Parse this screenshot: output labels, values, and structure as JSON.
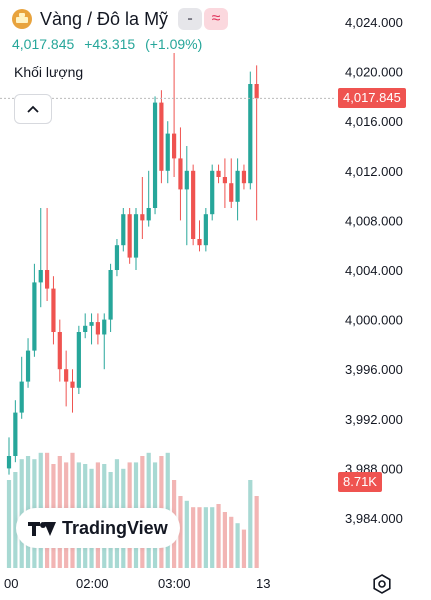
{
  "header": {
    "symbol_title": "Vàng / Đô la Mỹ",
    "price": "4,017.845",
    "change": "+43.315",
    "change_pct": "(+1.09%)",
    "mode_minus": "-",
    "mode_wave": "≈",
    "icons": {
      "symbol": "gold-bar-icon",
      "collapse": "chevron-up-icon",
      "settings": "gear-icon"
    }
  },
  "volume_label": "Khối lượng",
  "logo_text": "TradingView",
  "colors": {
    "up": "#26a69a",
    "down": "#ef5350",
    "up_vol": "#a8d9d3",
    "down_vol": "#f2b5b4"
  },
  "chart_data": {
    "type": "candlestick",
    "price_axis": {
      "ticks": [
        "4,024.000",
        "4,020.000",
        "4,016.000",
        "4,012.000",
        "4,008.000",
        "4,004.000",
        "4,000.000",
        "3,996.000",
        "3,992.000",
        "3,988.000",
        "3,984.000"
      ],
      "tick_values": [
        4024,
        4020,
        4016,
        4012,
        4008,
        4004,
        4000,
        3996,
        3992,
        3988,
        3984
      ],
      "range": [
        3982,
        4026
      ]
    },
    "time_axis": {
      "labels": [
        "00",
        "02:00",
        "03:00",
        "13"
      ]
    },
    "last_price_label": "4,017.845",
    "last_price": 4017.845,
    "volume_label_value": "8.71K",
    "candles": [
      {
        "o": 3988.0,
        "h": 3990.5,
        "l": 3987.5,
        "c": 3989.0
      },
      {
        "o": 3989.0,
        "h": 3993.5,
        "l": 3988.5,
        "c": 3992.5
      },
      {
        "o": 3992.5,
        "h": 3997.0,
        "l": 3992.0,
        "c": 3995.0
      },
      {
        "o": 3995.0,
        "h": 3998.5,
        "l": 3994.5,
        "c": 3997.5
      },
      {
        "o": 3997.5,
        "h": 4004.5,
        "l": 3997.0,
        "c": 4003.0
      },
      {
        "o": 4003.0,
        "h": 4009.0,
        "l": 4001.0,
        "c": 4004.0
      },
      {
        "o": 4004.0,
        "h": 4009.0,
        "l": 4001.5,
        "c": 4002.5
      },
      {
        "o": 4002.5,
        "h": 4003.5,
        "l": 3998.0,
        "c": 3999.0
      },
      {
        "o": 3999.0,
        "h": 4000.0,
        "l": 3995.0,
        "c": 3996.0
      },
      {
        "o": 3996.0,
        "h": 3997.5,
        "l": 3993.0,
        "c": 3995.0
      },
      {
        "o": 3995.0,
        "h": 3996.0,
        "l": 3992.5,
        "c": 3994.5
      },
      {
        "o": 3994.5,
        "h": 3999.5,
        "l": 3994.0,
        "c": 3999.0
      },
      {
        "o": 3999.0,
        "h": 4000.5,
        "l": 3998.5,
        "c": 3999.5
      },
      {
        "o": 3999.5,
        "h": 4000.5,
        "l": 3998.0,
        "c": 3999.8
      },
      {
        "o": 3999.8,
        "h": 4000.5,
        "l": 3998.0,
        "c": 3998.8
      },
      {
        "o": 3998.8,
        "h": 4000.5,
        "l": 3996.0,
        "c": 4000.0
      },
      {
        "o": 4000.0,
        "h": 4004.5,
        "l": 3999.0,
        "c": 4004.0
      },
      {
        "o": 4004.0,
        "h": 4006.5,
        "l": 4003.5,
        "c": 4006.0
      },
      {
        "o": 4006.0,
        "h": 4009.0,
        "l": 4005.5,
        "c": 4008.5
      },
      {
        "o": 4008.5,
        "h": 4009.0,
        "l": 4004.5,
        "c": 4005.0
      },
      {
        "o": 4005.0,
        "h": 4009.0,
        "l": 4004.0,
        "c": 4008.5
      },
      {
        "o": 4008.5,
        "h": 4011.5,
        "l": 4006.5,
        "c": 4008.0
      },
      {
        "o": 4008.0,
        "h": 4012.0,
        "l": 4007.5,
        "c": 4009.0
      },
      {
        "o": 4009.0,
        "h": 4018.0,
        "l": 4008.5,
        "c": 4017.5
      },
      {
        "o": 4017.5,
        "h": 4018.5,
        "l": 4011.0,
        "c": 4012.0
      },
      {
        "o": 4012.0,
        "h": 4016.0,
        "l": 4011.0,
        "c": 4015.0
      },
      {
        "o": 4015.0,
        "h": 4021.5,
        "l": 4011.5,
        "c": 4013.0
      },
      {
        "o": 4013.0,
        "h": 4015.5,
        "l": 4008.0,
        "c": 4010.5
      },
      {
        "o": 4010.5,
        "h": 4014.0,
        "l": 4006.0,
        "c": 4012.0
      },
      {
        "o": 4012.0,
        "h": 4012.5,
        "l": 4006.0,
        "c": 4006.5
      },
      {
        "o": 4006.5,
        "h": 4008.0,
        "l": 4005.5,
        "c": 4006.0
      },
      {
        "o": 4006.0,
        "h": 4009.0,
        "l": 4005.5,
        "c": 4008.5
      },
      {
        "o": 4008.5,
        "h": 4012.5,
        "l": 4008.0,
        "c": 4012.0
      },
      {
        "o": 4012.0,
        "h": 4012.5,
        "l": 4011.0,
        "c": 4011.5
      },
      {
        "o": 4011.5,
        "h": 4013.0,
        "l": 4009.0,
        "c": 4011.0
      },
      {
        "o": 4011.0,
        "h": 4013.0,
        "l": 4009.0,
        "c": 4009.5
      },
      {
        "o": 4009.5,
        "h": 4013.0,
        "l": 4008.0,
        "c": 4012.0
      },
      {
        "o": 4012.0,
        "h": 4012.5,
        "l": 4010.5,
        "c": 4011.0
      },
      {
        "o": 4011.0,
        "h": 4020.0,
        "l": 4010.5,
        "c": 4019.0
      },
      {
        "o": 4019.0,
        "h": 4020.5,
        "l": 4008.0,
        "c": 4017.845
      }
    ],
    "volume": [
      0.55,
      0.6,
      0.68,
      0.7,
      0.68,
      0.72,
      0.72,
      0.65,
      0.7,
      0.66,
      0.72,
      0.66,
      0.65,
      0.62,
      0.66,
      0.65,
      0.6,
      0.68,
      0.62,
      0.66,
      0.66,
      0.7,
      0.72,
      0.66,
      0.7,
      0.72,
      0.55,
      0.45,
      0.42,
      0.38,
      0.38,
      0.38,
      0.38,
      0.4,
      0.35,
      0.32,
      0.28,
      0.24,
      0.55,
      0.45
    ]
  }
}
